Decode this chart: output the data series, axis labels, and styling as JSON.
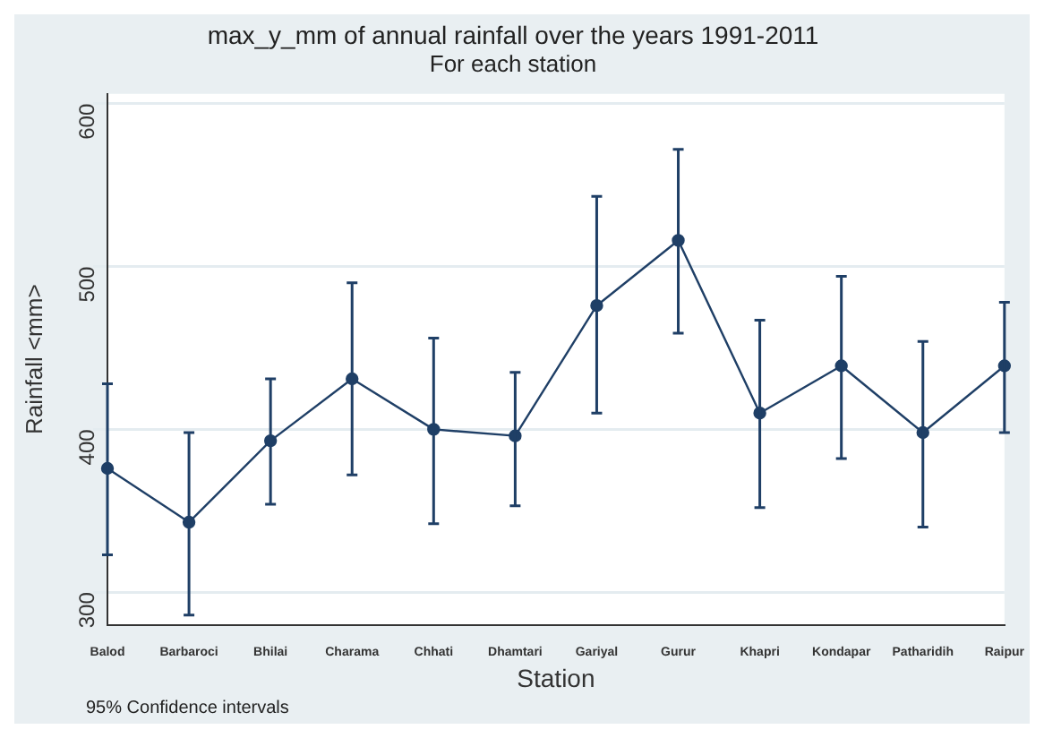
{
  "chart_data": {
    "type": "line",
    "title": "max_y_mm of annual rainfall over the years 1991-2011",
    "subtitle": "For each station",
    "xlabel": "Station",
    "ylabel": "Rainfall <mm>",
    "categories": [
      "Balod",
      "Barbaroci",
      "Bhilai",
      "Charama",
      "Chhati",
      "Dhamtari",
      "Gariyal",
      "Gurur",
      "Khapri",
      "Kondapar",
      "Patharidih",
      "Raipur"
    ],
    "values": [
      376,
      343,
      393,
      431,
      400,
      396,
      476,
      516,
      410,
      439,
      398,
      439
    ],
    "errors": [
      [
        323,
        428
      ],
      [
        286,
        398
      ],
      [
        354,
        431
      ],
      [
        372,
        490
      ],
      [
        342,
        456
      ],
      [
        353,
        435
      ],
      [
        410,
        543
      ],
      [
        459,
        572
      ],
      [
        352,
        467
      ],
      [
        382,
        494
      ],
      [
        340,
        454
      ],
      [
        398,
        478
      ]
    ],
    "color": "#1f3f66",
    "marker": "circle",
    "line_style": "solid",
    "grid": "y",
    "legend": false,
    "ylim": [
      280,
      606
    ],
    "yticks": [
      300,
      400,
      500,
      600
    ],
    "annotations": [
      "95% Confidence intervals"
    ]
  }
}
